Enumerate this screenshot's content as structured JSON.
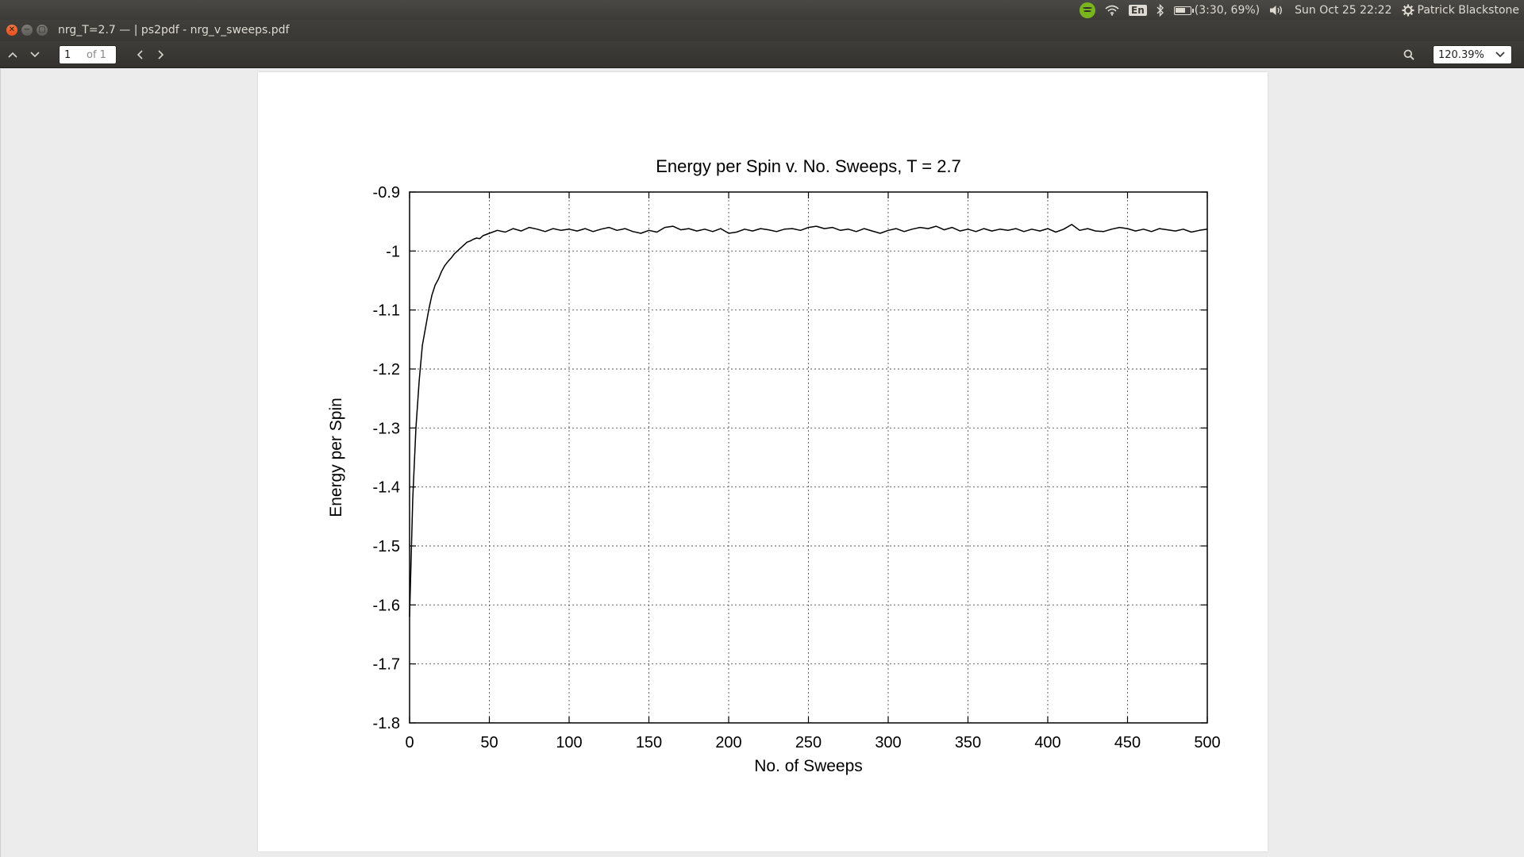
{
  "window": {
    "title": "nrg_T=2.7 — | ps2pdf - nrg_v_sweeps.pdf"
  },
  "panel": {
    "battery": "(3:30, 69%)",
    "keyboard_layout": "En",
    "datetime": "Sun Oct 25 22:22",
    "user": "Patrick Blackstone",
    "icons": [
      "spotify-icon",
      "wifi-icon",
      "keyboard-layout-icon",
      "bluetooth-icon",
      "battery-icon",
      "volume-icon",
      "settings-gear-icon"
    ]
  },
  "toolbar": {
    "page_value": "1",
    "page_of": "of 1",
    "zoom": "120.39%"
  },
  "chart_data": {
    "type": "line",
    "title": "Energy per Spin v. No. Sweeps, T = 2.7",
    "xlabel": "No. of Sweeps",
    "ylabel": "Energy per Spin",
    "xlim": [
      0,
      500
    ],
    "ylim": [
      -1.8,
      -0.9
    ],
    "xticks": [
      "0",
      "50",
      "100",
      "150",
      "200",
      "250",
      "300",
      "350",
      "400",
      "450",
      "500"
    ],
    "yticks": [
      "-0.9",
      "-1",
      "-1.1",
      "-1.2",
      "-1.3",
      "-1.4",
      "-1.5",
      "-1.6",
      "-1.7",
      "-1.8"
    ],
    "grid": true,
    "legend": "none",
    "series": [
      {
        "x": [
          0,
          2,
          4,
          6,
          8,
          10,
          12,
          14,
          16,
          18,
          20,
          22,
          24,
          26,
          28,
          30,
          32,
          34,
          36,
          38,
          40,
          42,
          44,
          46,
          48,
          50,
          55,
          60,
          65,
          70,
          75,
          80,
          85,
          90,
          95,
          100,
          105,
          110,
          115,
          120,
          125,
          130,
          135,
          140,
          145,
          150,
          155,
          160,
          165,
          170,
          175,
          180,
          185,
          190,
          195,
          200,
          205,
          210,
          215,
          220,
          225,
          230,
          235,
          240,
          245,
          250,
          255,
          260,
          265,
          270,
          275,
          280,
          285,
          290,
          295,
          300,
          305,
          310,
          315,
          320,
          325,
          330,
          335,
          340,
          345,
          350,
          355,
          360,
          365,
          370,
          375,
          380,
          385,
          390,
          395,
          400,
          405,
          410,
          415,
          420,
          425,
          430,
          435,
          440,
          445,
          450,
          455,
          460,
          465,
          470,
          475,
          480,
          485,
          490,
          495,
          500
        ],
        "y": [
          -1.62,
          -1.42,
          -1.3,
          -1.22,
          -1.16,
          -1.13,
          -1.1,
          -1.075,
          -1.058,
          -1.048,
          -1.035,
          -1.025,
          -1.018,
          -1.012,
          -1.005,
          -1.0,
          -0.995,
          -0.99,
          -0.985,
          -0.983,
          -0.98,
          -0.978,
          -0.979,
          -0.974,
          -0.972,
          -0.97,
          -0.965,
          -0.968,
          -0.962,
          -0.966,
          -0.96,
          -0.963,
          -0.967,
          -0.962,
          -0.965,
          -0.963,
          -0.966,
          -0.962,
          -0.967,
          -0.963,
          -0.96,
          -0.965,
          -0.962,
          -0.967,
          -0.97,
          -0.965,
          -0.968,
          -0.96,
          -0.958,
          -0.964,
          -0.962,
          -0.966,
          -0.963,
          -0.967,
          -0.962,
          -0.97,
          -0.968,
          -0.963,
          -0.966,
          -0.962,
          -0.964,
          -0.967,
          -0.963,
          -0.962,
          -0.965,
          -0.96,
          -0.958,
          -0.962,
          -0.96,
          -0.965,
          -0.963,
          -0.967,
          -0.962,
          -0.966,
          -0.97,
          -0.965,
          -0.962,
          -0.967,
          -0.963,
          -0.96,
          -0.962,
          -0.958,
          -0.964,
          -0.96,
          -0.966,
          -0.963,
          -0.967,
          -0.962,
          -0.966,
          -0.963,
          -0.965,
          -0.962,
          -0.967,
          -0.963,
          -0.966,
          -0.962,
          -0.968,
          -0.963,
          -0.955,
          -0.965,
          -0.962,
          -0.966,
          -0.967,
          -0.963,
          -0.96,
          -0.962,
          -0.966,
          -0.963,
          -0.967,
          -0.962,
          -0.964,
          -0.966,
          -0.963,
          -0.968,
          -0.965,
          -0.963
        ]
      }
    ]
  }
}
